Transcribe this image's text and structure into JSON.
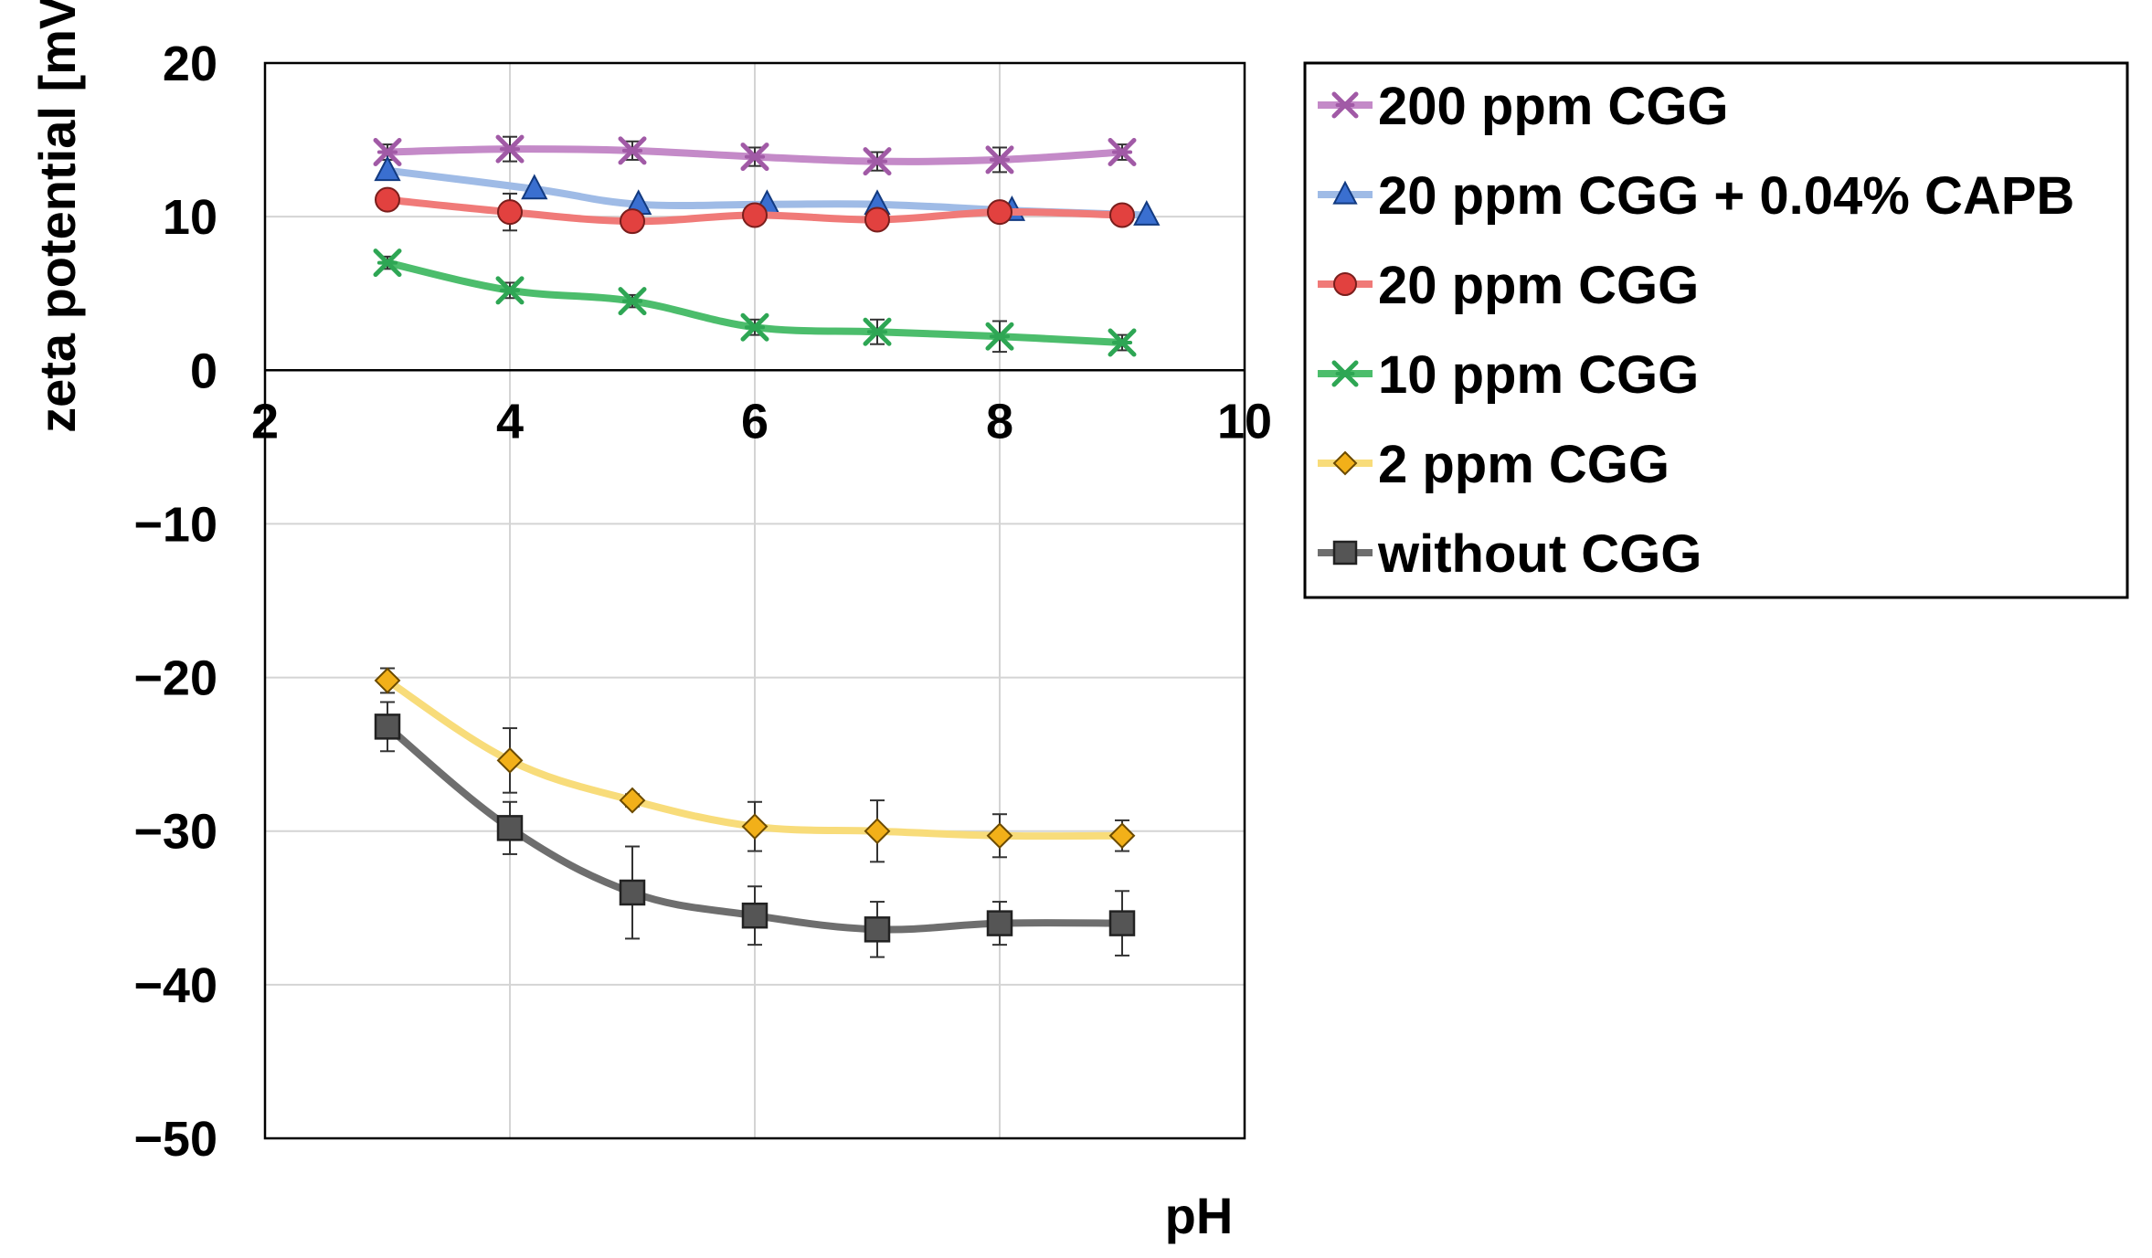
{
  "chart_data": {
    "type": "line",
    "title": "",
    "xlabel": "pH",
    "ylabel": "zeta potential [mV]",
    "xlim": [
      2,
      10
    ],
    "ylim": [
      -50,
      20
    ],
    "x_ticks": [
      2,
      4,
      6,
      8,
      10
    ],
    "x_tick_labels": [
      "2",
      "4",
      "6",
      "8",
      "10"
    ],
    "y_ticks": [
      20,
      10,
      0,
      -10,
      -20,
      -30,
      -40,
      -50
    ],
    "y_tick_labels": [
      "20",
      "10",
      "0",
      "−10",
      "−20",
      "−30",
      "−40",
      "−50"
    ],
    "grid": true,
    "legend_position": "right",
    "series": [
      {
        "name": "200 ppm CGG",
        "color": "#a15aa6",
        "line_color": "#c48ac8",
        "marker": "x-star",
        "x": [
          3,
          4,
          5,
          6,
          7,
          8,
          9
        ],
        "y": [
          14.2,
          14.4,
          14.3,
          13.9,
          13.6,
          13.7,
          14.2
        ],
        "err": [
          0.5,
          0.8,
          0.6,
          0.6,
          0.6,
          0.8,
          0.5
        ]
      },
      {
        "name": "20 ppm CGG + 0.04% CAPB",
        "color": "#3a6fd0",
        "line_color": "#9fbbe6",
        "marker": "triangle",
        "x": [
          3,
          4.2,
          5.05,
          6.1,
          7,
          8.1,
          9.2
        ],
        "y": [
          13,
          11.8,
          10.8,
          10.8,
          10.8,
          10.4,
          10.1
        ],
        "err": [
          0,
          0,
          0,
          0,
          0,
          0,
          0
        ]
      },
      {
        "name": "20 ppm CGG",
        "color": "#e2413f",
        "line_color": "#f07a78",
        "marker": "circle",
        "x": [
          3,
          4,
          5,
          6,
          7,
          8,
          9
        ],
        "y": [
          11.1,
          10.3,
          9.7,
          10.1,
          9.8,
          10.3,
          10.1
        ],
        "err": [
          0.4,
          1.2,
          0.5,
          0.5,
          0.5,
          0.5,
          0.4
        ]
      },
      {
        "name": "10 ppm CGG",
        "color": "#2ea654",
        "line_color": "#4cbd6c",
        "marker": "x-star",
        "x": [
          3,
          4,
          5,
          6,
          7,
          8,
          9
        ],
        "y": [
          7.0,
          5.2,
          4.5,
          2.8,
          2.5,
          2.2,
          1.8
        ],
        "err": [
          0.4,
          0.5,
          0.4,
          0.5,
          0.8,
          1.0,
          0.5
        ]
      },
      {
        "name": "2 ppm CGG",
        "color": "#f2b019",
        "line_color": "#f8dc7a",
        "marker": "diamond",
        "x": [
          3,
          4,
          5,
          6,
          7,
          8,
          9
        ],
        "y": [
          -20.2,
          -25.4,
          -28.0,
          -29.7,
          -30.0,
          -30.3,
          -30.3
        ],
        "err": [
          0.8,
          2.1,
          0.4,
          1.6,
          2.0,
          1.4,
          1.0
        ]
      },
      {
        "name": "without CGG",
        "color": "#555555",
        "line_color": "#6e6e6e",
        "marker": "square",
        "x": [
          3,
          4,
          5,
          6,
          7,
          8,
          9
        ],
        "y": [
          -23.2,
          -29.8,
          -34.0,
          -35.5,
          -36.4,
          -36.0,
          -36.0
        ],
        "err": [
          1.6,
          1.7,
          3.0,
          1.9,
          1.8,
          1.4,
          2.1
        ]
      }
    ]
  }
}
